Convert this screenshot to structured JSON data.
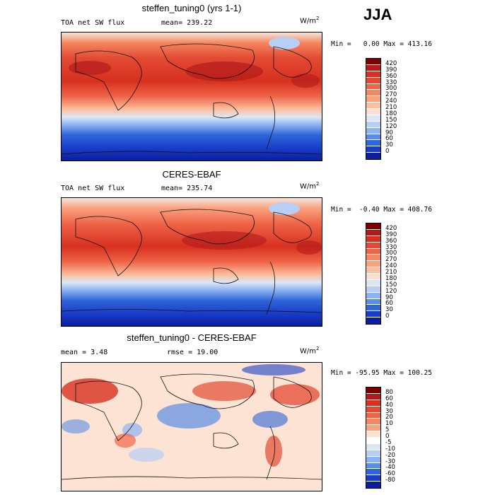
{
  "season": "JJA",
  "panels": [
    {
      "title": "steffen_tuning0 (yrs 1-1)",
      "left_label": "TOA net SW flux",
      "mid_label": "mean= 239.22",
      "units": "W/m",
      "units_sup": "2",
      "minmax": "Min =   0.00 Max = 413.16",
      "colorbar": {
        "labels": [
          "420",
          "390",
          "360",
          "330",
          "300",
          "270",
          "240",
          "210",
          "180",
          "150",
          "120",
          "90",
          "60",
          "30",
          "0"
        ],
        "colors": [
          "#800000",
          "#b31b1b",
          "#d7301f",
          "#e34a33",
          "#ef6548",
          "#f4875f",
          "#f9a27e",
          "#fbbf9f",
          "#fdded0",
          "#dbe7f7",
          "#b7cff5",
          "#8db3f2",
          "#5a8de6",
          "#2f66d9",
          "#1a3ec9",
          "#0a1e9e"
        ]
      }
    },
    {
      "title": "CERES-EBAF",
      "left_label": "TOA net SW flux",
      "mid_label": "mean= 235.74",
      "units": "W/m",
      "units_sup": "2",
      "minmax": "Min =  -0.40 Max = 408.76",
      "colorbar": {
        "labels": [
          "420",
          "390",
          "360",
          "330",
          "300",
          "270",
          "240",
          "210",
          "180",
          "150",
          "120",
          "90",
          "60",
          "30",
          "0"
        ],
        "colors": [
          "#800000",
          "#b31b1b",
          "#d7301f",
          "#e34a33",
          "#ef6548",
          "#f4875f",
          "#f9a27e",
          "#fbbf9f",
          "#fdded0",
          "#dbe7f7",
          "#b7cff5",
          "#8db3f2",
          "#5a8de6",
          "#2f66d9",
          "#1a3ec9",
          "#0a1e9e"
        ]
      }
    },
    {
      "title": "steffen_tuning0 - CERES-EBAF",
      "left_label": "mean =    3.48",
      "mid_label": "rmse =  19.00",
      "units": "W/m",
      "units_sup": "2",
      "minmax": "Min = -95.95 Max = 100.25",
      "colorbar": {
        "labels": [
          "80",
          "60",
          "40",
          "30",
          "20",
          "10",
          "5",
          "0",
          "-5",
          "-10",
          "-20",
          "-30",
          "-40",
          "-60",
          "-80"
        ],
        "colors": [
          "#800000",
          "#b31b1b",
          "#d7301f",
          "#e34a33",
          "#ef6548",
          "#f4875f",
          "#f9a27e",
          "#fde3d3",
          "#ffffff",
          "#dbe7f7",
          "#b7cff5",
          "#8db3f2",
          "#5a8de6",
          "#2f66d9",
          "#1a3ec9",
          "#0a1e9e"
        ]
      }
    }
  ]
}
